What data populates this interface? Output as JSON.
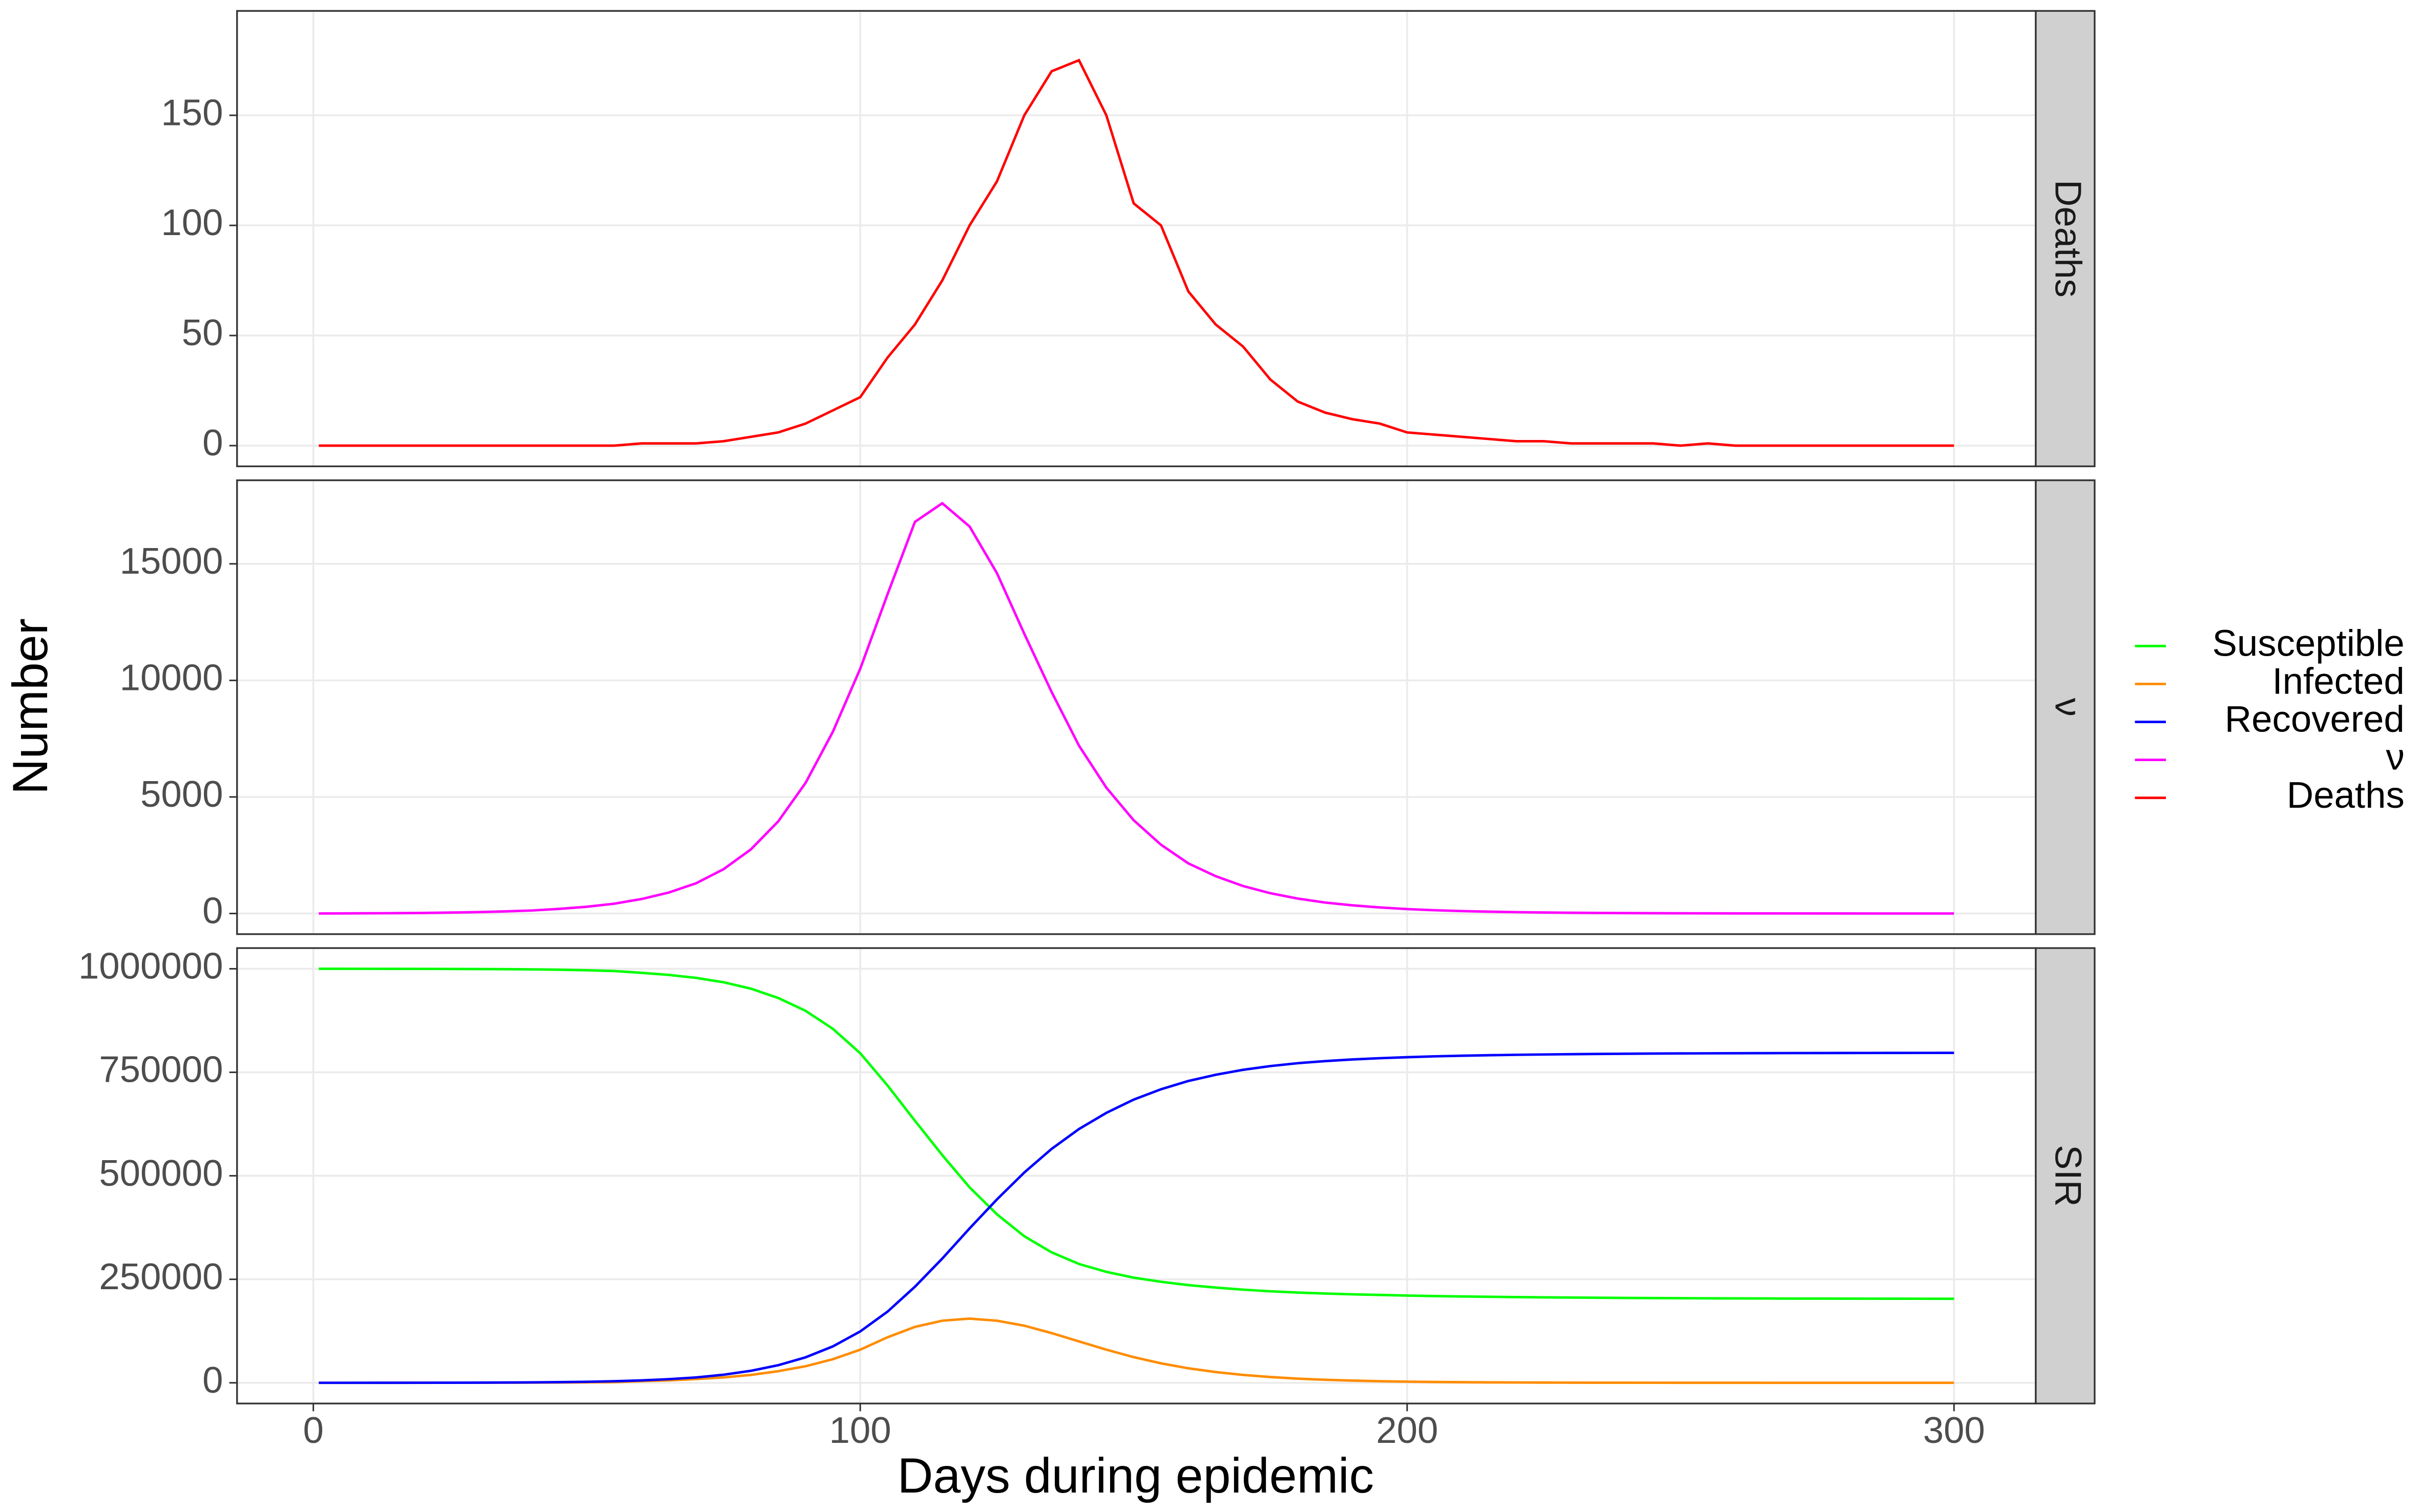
{
  "chart_data": {
    "type": "line",
    "xlabel": "Days during epidemic",
    "ylabel": "Number",
    "x": [
      1,
      5,
      10,
      15,
      20,
      25,
      30,
      35,
      40,
      45,
      50,
      55,
      60,
      65,
      70,
      75,
      80,
      85,
      90,
      95,
      100,
      105,
      110,
      115,
      120,
      125,
      130,
      135,
      140,
      145,
      150,
      155,
      160,
      165,
      170,
      175,
      180,
      185,
      190,
      195,
      200,
      205,
      210,
      215,
      220,
      225,
      230,
      235,
      240,
      245,
      250,
      255,
      260,
      265,
      270,
      275,
      280,
      285,
      290,
      295,
      300
    ],
    "xlim": [
      -13.95,
      314.95
    ],
    "xticks": [
      0,
      100,
      200,
      300
    ],
    "grid": true,
    "panels": [
      {
        "strip": "Deaths",
        "ylim": [
          -9.4,
          197.4
        ],
        "yticks": [
          0,
          50,
          100,
          150
        ],
        "series": [
          {
            "name": "Deaths",
            "color": "#ff0000",
            "values": [
              0,
              0,
              0,
              0,
              0,
              0,
              0,
              0,
              0,
              0,
              0,
              0,
              1,
              1,
              1,
              2,
              4,
              6,
              10,
              16,
              22,
              40,
              55,
              75,
              100,
              120,
              150,
              170,
              175,
              150,
              110,
              100,
              70,
              55,
              45,
              30,
              20,
              15,
              12,
              10,
              6,
              5,
              4,
              3,
              2,
              2,
              1,
              1,
              1,
              1,
              0,
              1,
              0,
              0,
              0,
              0,
              0,
              0,
              0,
              0,
              0
            ]
          }
        ]
      },
      {
        "strip": "ν",
        "ylim": [
          -885,
          18585
        ],
        "yticks": [
          0,
          5000,
          10000,
          15000
        ],
        "series": [
          {
            "name": "ν",
            "color": "#ff00ff",
            "values": [
              0,
              5,
              10,
              15,
              25,
              40,
              60,
              90,
              130,
              200,
              290,
              420,
              620,
              900,
              1300,
              1900,
              2750,
              3950,
              5600,
              7800,
              10500,
              13700,
              16800,
              17600,
              16600,
              14600,
              12000,
              9500,
              7200,
              5400,
              4000,
              2950,
              2150,
              1600,
              1180,
              870,
              640,
              470,
              350,
              260,
              190,
              140,
              105,
              78,
              58,
              43,
              32,
              24,
              18,
              13,
              10,
              7,
              5,
              4,
              3,
              2,
              2,
              1,
              1,
              1,
              1
            ]
          }
        ]
      },
      {
        "strip": "SIR",
        "ylim": [
          -50000,
          1050000
        ],
        "yticks": [
          0,
          250000,
          500000,
          750000,
          1000000
        ],
        "series": [
          {
            "name": "Susceptible",
            "color": "#00ff00",
            "values": [
              999990,
              999960,
              999910,
              999850,
              999760,
              999610,
              999390,
              999030,
              998520,
              997680,
              996420,
              994600,
              990200,
              985200,
              978000,
              967500,
              952000,
              929500,
              898500,
              855000,
              796000,
              718000,
              633000,
              550000,
              472000,
              407000,
              354000,
              315000,
              287000,
              268000,
              254000,
              244000,
              236000,
              230000,
              225000,
              221000,
              218000,
              215700,
              213700,
              212200,
              210700,
              209500,
              208500,
              207700,
              207000,
              206400,
              205900,
              205400,
              205000,
              204700,
              204400,
              204100,
              203900,
              203700,
              203500,
              203400,
              203300,
              203200,
              203100,
              203050,
              203000
            ]
          },
          {
            "name": "Infected",
            "color": "#ff8c00",
            "values": [
              10,
              20,
              40,
              60,
              90,
              140,
              210,
              320,
              480,
              720,
              1080,
              1600,
              4000,
              6000,
              9000,
              13000,
              19000,
              28000,
              40000,
              57000,
              80000,
              110000,
              135000,
              150000,
              155000,
              150000,
              138000,
              120000,
              100000,
              80000,
              62000,
              47000,
              35000,
              26000,
              19000,
              14000,
              10000,
              7300,
              5300,
              3800,
              2800,
              2000,
              1450,
              1050,
              760,
              550,
              400,
              290,
              210,
              150,
              110,
              80,
              58,
              42,
              30,
              22,
              16,
              12,
              8,
              6,
              4
            ]
          },
          {
            "name": "Recovered",
            "color": "#0000ff",
            "values": [
              0,
              20,
              50,
              90,
              150,
              250,
              400,
              650,
              1000,
              1600,
              2500,
              3800,
              5800,
              8800,
              13000,
              19500,
              29000,
              42500,
              61500,
              88000,
              124000,
              172000,
              232000,
              300000,
              373000,
              443000,
              508000,
              565000,
              613000,
              652000,
              684000,
              709000,
              729000,
              744000,
              756000,
              765000,
              772000,
              777000,
              781000,
              784000,
              786500,
              788500,
              790000,
              791200,
              792200,
              793000,
              793700,
              794300,
              794800,
              795200,
              795500,
              795800,
              796000,
              796200,
              796400,
              796500,
              796600,
              796700,
              796800,
              796900,
              797000
            ]
          }
        ]
      }
    ]
  }
}
